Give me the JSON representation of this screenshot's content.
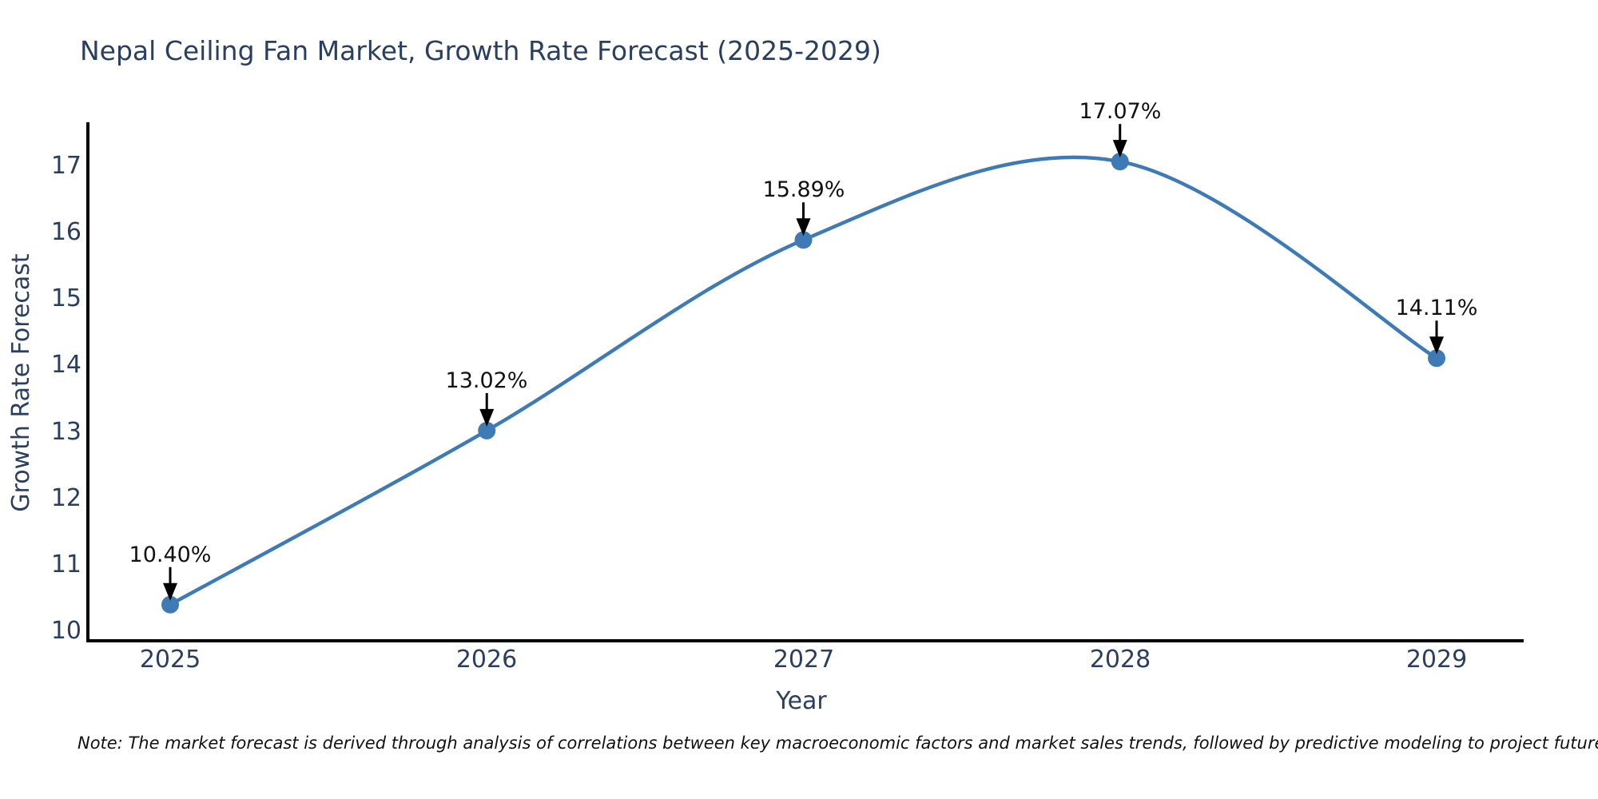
{
  "page": {
    "note": "Note: The market forecast is derived through analysis of correlations between key macroeconomic factors and market sales trends, followed by predictive modeling to project future sales."
  },
  "chart_data": {
    "type": "line",
    "title": "Nepal Ceiling Fan Market, Growth Rate Forecast (2025-2029)",
    "xlabel": "Year",
    "ylabel": "Growth Rate Forecast",
    "x": [
      "2025",
      "2026",
      "2027",
      "2028",
      "2029"
    ],
    "y": [
      10.4,
      13.02,
      15.89,
      17.07,
      14.11
    ],
    "point_labels": [
      "10.40%",
      "13.02%",
      "15.89%",
      "17.07%",
      "14.11%"
    ],
    "yticks": [
      10,
      11,
      12,
      13,
      14,
      15,
      16,
      17
    ],
    "ylim": [
      9.87,
      17.8
    ],
    "grid": false,
    "legend_position": "none",
    "line_shape": "spline",
    "colors": {
      "line": "#3e7bb6",
      "marker": "#3e7bb6",
      "axis": "#000000",
      "annotation_arrow": "#000000",
      "title_text": "#2a3f5f",
      "tick_text": "#2a3f5f",
      "annotation_text": "#111111"
    }
  }
}
